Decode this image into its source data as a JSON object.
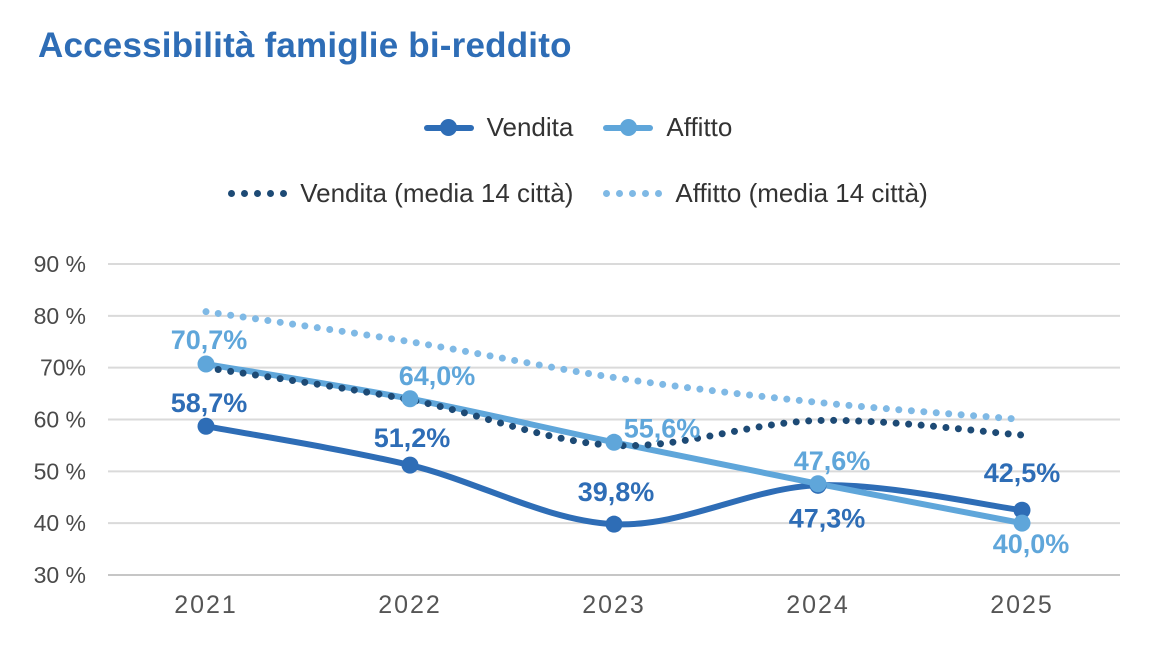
{
  "title": "Accessibilità famiglie bi-reddito",
  "colors": {
    "title": "#2e6db6",
    "vendita": "#2e6db6",
    "affitto": "#5fa6da",
    "vendita_media": "#1d4a75",
    "affitto_media": "#7fb9e5",
    "grid": "#dadada",
    "axis": "#c6c6c6",
    "tick_text": "#4a4a4a",
    "legend_text": "#333333"
  },
  "legend": {
    "row1": [
      "Vendita",
      "Affitto"
    ],
    "row2": [
      "Vendita (media 14 città)",
      "Affitto (media 14 città)"
    ]
  },
  "chart_data": {
    "type": "line",
    "title": "Accessibilità famiglie bi-reddito",
    "categories": [
      "2021",
      "2022",
      "2023",
      "2024",
      "2025"
    ],
    "xlabel": "",
    "ylabel": "",
    "ylim": [
      30,
      90
    ],
    "grid": true,
    "legend_position": "top-center",
    "y_ticks": [
      {
        "label": "90 %",
        "value": 90
      },
      {
        "label": "80 %",
        "value": 80
      },
      {
        "label": "70%",
        "value": 70
      },
      {
        "label": "60 %",
        "value": 60
      },
      {
        "label": "50 %",
        "value": 50
      },
      {
        "label": "40 %",
        "value": 40
      },
      {
        "label": "30 %",
        "value": 30
      }
    ],
    "series": [
      {
        "name": "Vendita",
        "style": "solid",
        "color": "#2e6db6",
        "values": [
          58.7,
          51.2,
          39.8,
          47.3,
          42.5
        ],
        "labels": [
          "58,7%",
          "51,2%",
          "39,8%",
          "47,3%",
          "42,5%"
        ],
        "label_offsets": [
          [
            3,
            -14
          ],
          [
            2,
            -18
          ],
          [
            2,
            -23
          ],
          [
            9,
            42
          ],
          [
            0,
            -28
          ]
        ]
      },
      {
        "name": "Affitto",
        "style": "solid",
        "color": "#5fa6da",
        "values": [
          70.7,
          64.0,
          55.6,
          47.6,
          40.0
        ],
        "labels": [
          "70,7%",
          "64,0%",
          "55,6%",
          "47,6%",
          "40,0%"
        ],
        "label_offsets": [
          [
            3,
            -15
          ],
          [
            27,
            -14
          ],
          [
            48,
            -5
          ],
          [
            14,
            -14
          ],
          [
            9,
            30
          ]
        ]
      },
      {
        "name": "Vendita (media 14 città)",
        "style": "dotted",
        "color": "#1d4a75",
        "values": [
          70.0,
          63.8,
          55.0,
          59.8,
          57.0
        ]
      },
      {
        "name": "Affitto (media 14 città)",
        "style": "dotted",
        "color": "#7fb9e5",
        "values": [
          80.8,
          75.0,
          68.1,
          63.3,
          60.0
        ]
      }
    ]
  }
}
